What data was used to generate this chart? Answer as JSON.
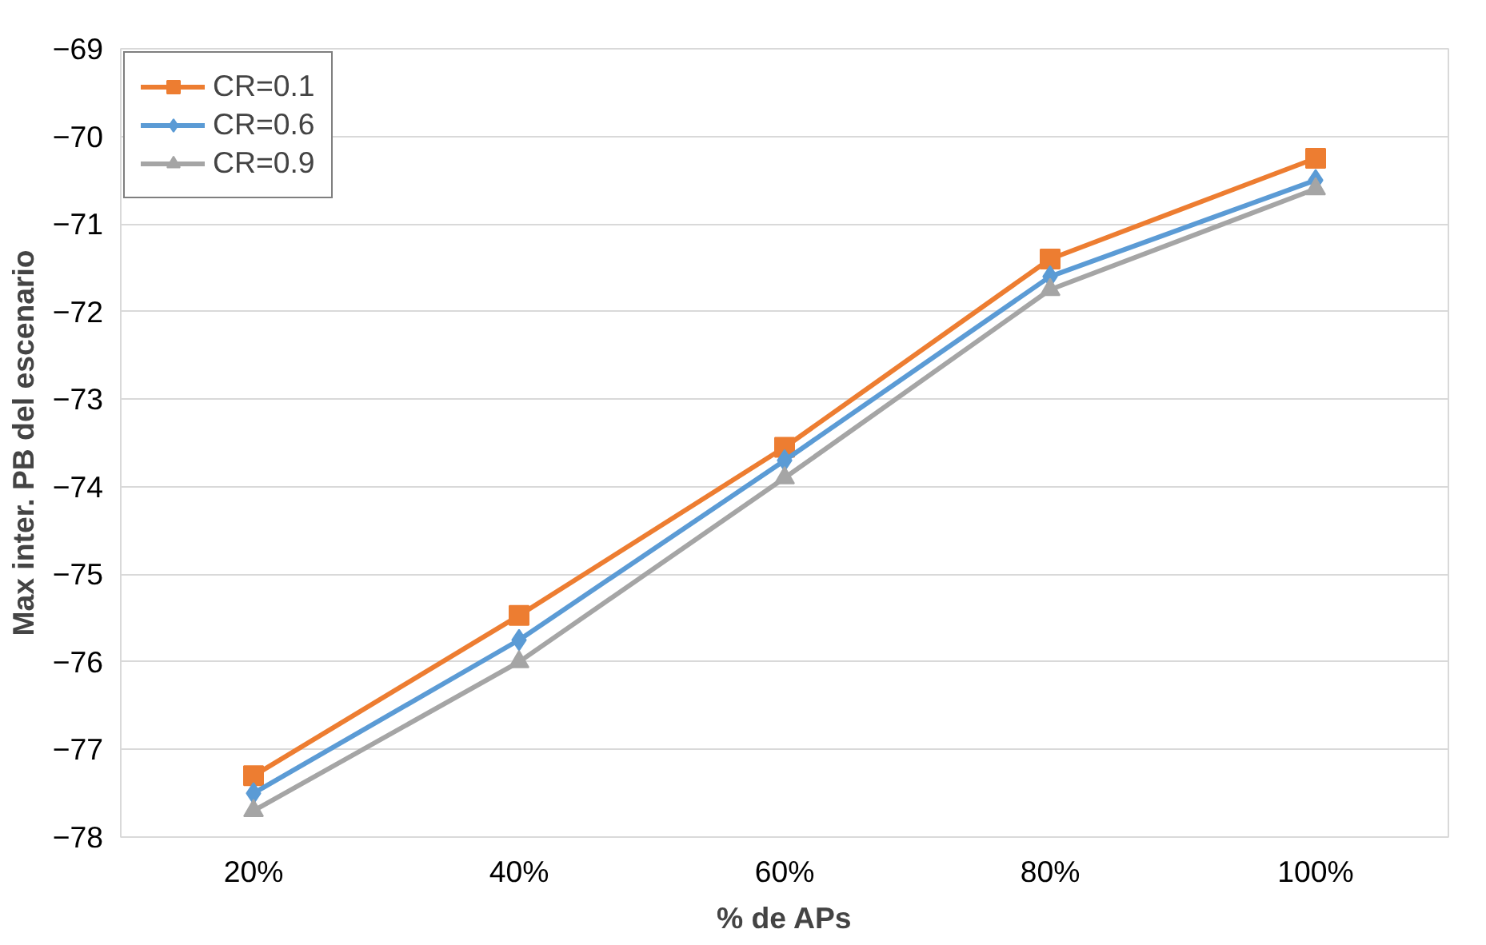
{
  "chart_data": {
    "type": "line",
    "xlabel": "% de APs",
    "ylabel": "Max inter. PB del escenario",
    "categories": [
      "20%",
      "40%",
      "60%",
      "80%",
      "100%"
    ],
    "ylim": [
      -78,
      -69
    ],
    "yticks": [
      -78,
      -77,
      -76,
      -75,
      -74,
      -73,
      -72,
      -71,
      -70,
      -69
    ],
    "grid": "y",
    "legend": "top left",
    "line_style": "solid",
    "series": [
      {
        "name": "CR=0.1",
        "color": "#ed7d31",
        "marker": "square",
        "values": [
          -77.3,
          -75.47,
          -73.55,
          -71.4,
          -70.25
        ]
      },
      {
        "name": "CR=0.6",
        "color": "#5b9bd5",
        "marker": "diamond",
        "values": [
          -77.5,
          -75.75,
          -73.7,
          -71.6,
          -70.5
        ]
      },
      {
        "name": "CR=0.9",
        "color": "#a5a5a5",
        "marker": "triangle",
        "values": [
          -77.7,
          -76.0,
          -73.9,
          -71.75,
          -70.6
        ]
      }
    ]
  }
}
